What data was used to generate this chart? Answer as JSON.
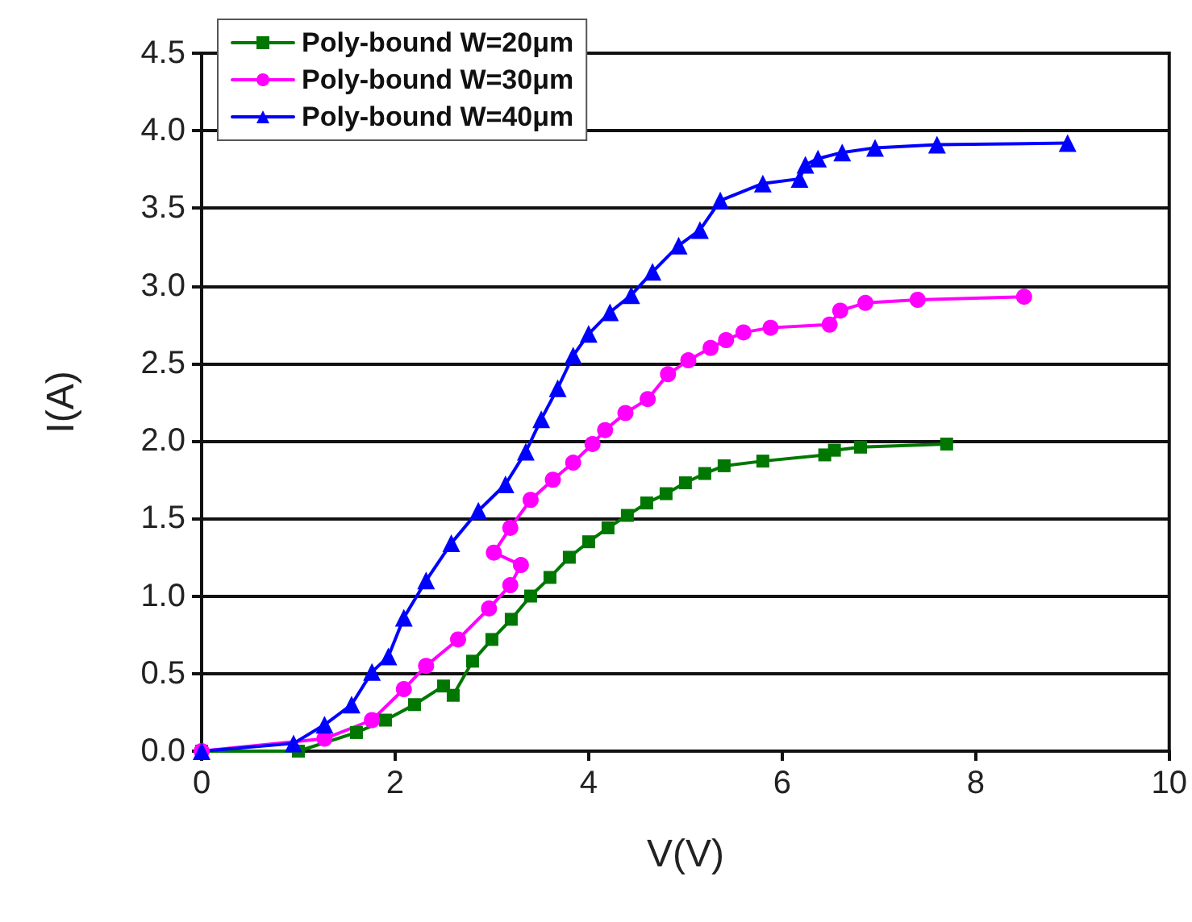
{
  "chart_data": {
    "type": "line",
    "xlabel": "V(V)",
    "ylabel": "I(A)",
    "xlim": [
      0,
      10
    ],
    "xticks": [
      0,
      2,
      4,
      6,
      8,
      10
    ],
    "ylim": [
      0,
      4.5
    ],
    "yticks": [
      {
        "value": 0,
        "label": "0.0"
      },
      0.5,
      {
        "value": 1,
        "label": "1.0"
      },
      1.5,
      {
        "value": 2,
        "label": "2.0"
      },
      2.5,
      {
        "value": 3,
        "label": "3.0"
      },
      3.5,
      {
        "value": 4,
        "label": "4.0"
      },
      4.5
    ],
    "grid": "y",
    "legend": "top left",
    "line_style": "solid",
    "series": [
      {
        "name": "Poly-bound W=20μm",
        "color": "#007700",
        "marker": "square",
        "x": [
          0,
          1.0,
          1.6,
          1.9,
          2.2,
          2.5,
          2.6,
          2.8,
          3.0,
          3.2,
          3.4,
          3.6,
          3.8,
          4.0,
          4.2,
          4.4,
          4.6,
          4.8,
          5.0,
          5.2,
          5.4,
          5.8,
          6.44,
          6.54,
          6.81,
          7.7
        ],
        "values": [
          0,
          0.0,
          0.12,
          0.2,
          0.3,
          0.42,
          0.36,
          0.58,
          0.72,
          0.85,
          1.0,
          1.12,
          1.25,
          1.35,
          1.44,
          1.52,
          1.6,
          1.66,
          1.73,
          1.79,
          1.84,
          1.87,
          1.91,
          1.94,
          1.96,
          1.98
        ]
      },
      {
        "name": "Poly-bound W=30μm",
        "color": "#ff00ff",
        "marker": "circle",
        "x": [
          0,
          1.27,
          1.76,
          2.09,
          2.32,
          2.65,
          2.97,
          3.19,
          3.3,
          3.02,
          3.19,
          3.4,
          3.63,
          3.84,
          4.04,
          4.17,
          4.38,
          4.61,
          4.82,
          5.03,
          5.26,
          5.42,
          5.6,
          5.88,
          6.49,
          6.6,
          6.86,
          7.4,
          8.5
        ],
        "values": [
          0,
          0.08,
          0.2,
          0.4,
          0.55,
          0.72,
          0.92,
          1.07,
          1.2,
          1.28,
          1.44,
          1.62,
          1.75,
          1.86,
          1.98,
          2.07,
          2.18,
          2.27,
          2.43,
          2.52,
          2.6,
          2.65,
          2.7,
          2.73,
          2.75,
          2.84,
          2.89,
          2.91,
          2.93
        ]
      },
      {
        "name": "Poly-bound W=40μm",
        "color": "#0000ff",
        "marker": "triangle",
        "x": [
          0,
          0.95,
          1.27,
          1.55,
          1.76,
          1.93,
          2.09,
          2.32,
          2.58,
          2.86,
          3.14,
          3.35,
          3.51,
          3.68,
          3.84,
          4.0,
          4.22,
          4.44,
          4.66,
          4.93,
          5.15,
          5.36,
          5.8,
          6.18,
          6.24,
          6.37,
          6.62,
          6.96,
          7.6,
          8.95
        ],
        "values": [
          0,
          0.05,
          0.17,
          0.3,
          0.51,
          0.61,
          0.86,
          1.1,
          1.34,
          1.55,
          1.72,
          1.93,
          2.14,
          2.34,
          2.55,
          2.69,
          2.83,
          2.94,
          3.09,
          3.26,
          3.36,
          3.55,
          3.66,
          3.69,
          3.78,
          3.82,
          3.86,
          3.89,
          3.91,
          3.92
        ]
      }
    ]
  }
}
